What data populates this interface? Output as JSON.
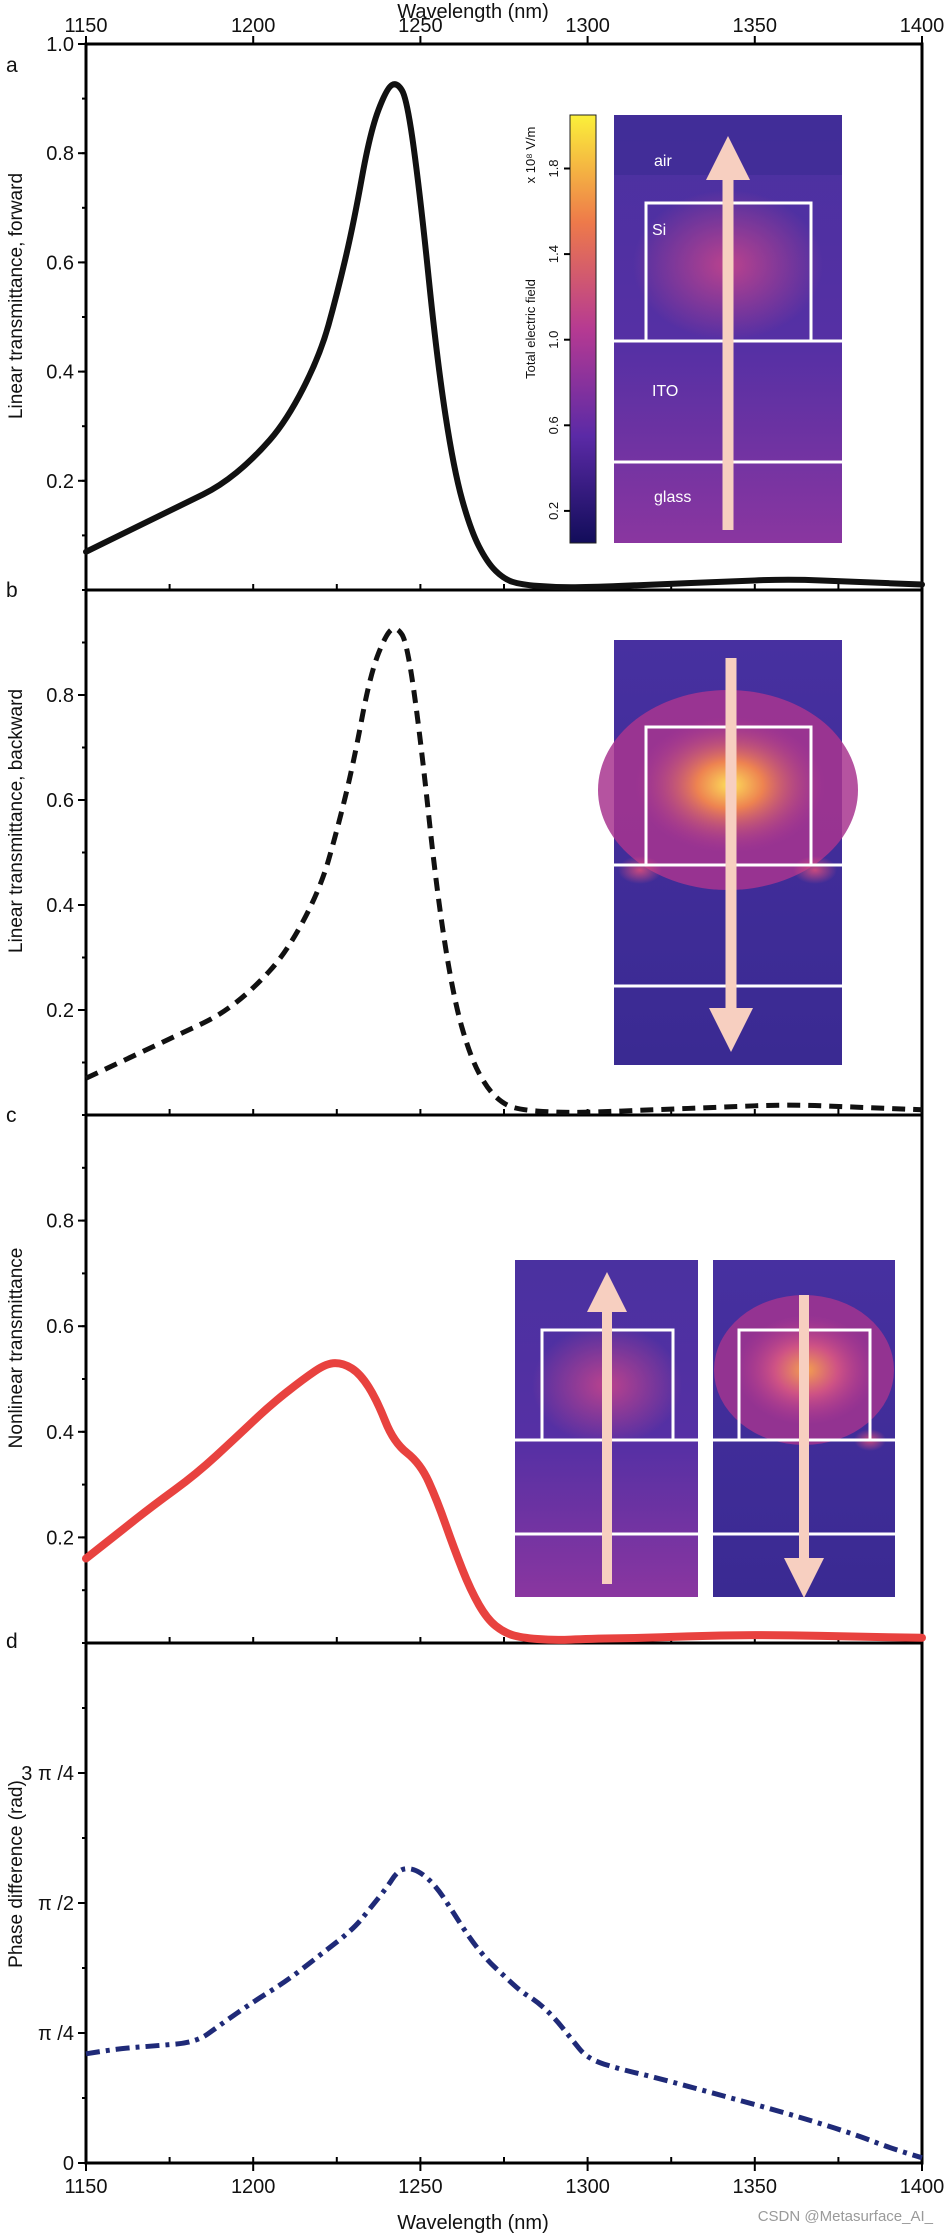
{
  "x_axis": {
    "label": "Wavelength (nm)",
    "ticks": [
      "1150",
      "1200",
      "1250",
      "1300",
      "1350",
      "1400"
    ],
    "xlim": [
      1150,
      1400
    ]
  },
  "panels": [
    {
      "letter": "a",
      "ylabel": "Linear transmittance, forward",
      "yticks": [
        "0.2",
        "0.4",
        "0.6",
        "0.8",
        "1.0"
      ]
    },
    {
      "letter": "b",
      "ylabel": "Linear transmittance, backward",
      "yticks": [
        "0.2",
        "0.4",
        "0.6",
        "0.8"
      ]
    },
    {
      "letter": "c",
      "ylabel": "Nonlinear transmittance",
      "yticks": [
        "0.2",
        "0.4",
        "0.6",
        "0.8"
      ]
    },
    {
      "letter": "d",
      "ylabel": "Phase difference (rad)",
      "yticks": [
        "0",
        "π /4",
        "π /2",
        "3 π /4"
      ]
    }
  ],
  "inset": {
    "colorbar_title": "Total electric field",
    "colorbar_unit": "x 10⁸ V/m",
    "colorbar_ticks": [
      "0.2",
      "0.6",
      "1.0",
      "1.4",
      "1.8"
    ],
    "layers": [
      "air",
      "Si",
      "ITO",
      "glass"
    ]
  },
  "colors": {
    "forward": "#111111",
    "backward": "#111111",
    "nonlinear": "#e8423f",
    "phase": "#1f2a78",
    "arrow": "#f7cfc0"
  },
  "watermark": "CSDN @Metasurface_AI_",
  "chart_data": [
    {
      "type": "line",
      "panel": "a",
      "ylabel": "Linear transmittance, forward",
      "xlabel": "Wavelength (nm)",
      "xlim": [
        1150,
        1400
      ],
      "ylim": [
        0,
        1.0
      ],
      "style": "solid",
      "x": [
        1150,
        1160,
        1170,
        1180,
        1190,
        1200,
        1210,
        1220,
        1225,
        1230,
        1235,
        1240,
        1243,
        1246,
        1250,
        1255,
        1260,
        1265,
        1270,
        1275,
        1280,
        1290,
        1300,
        1320,
        1340,
        1360,
        1380,
        1400
      ],
      "y": [
        0.07,
        0.1,
        0.13,
        0.16,
        0.19,
        0.24,
        0.31,
        0.43,
        0.54,
        0.67,
        0.84,
        0.92,
        0.93,
        0.9,
        0.72,
        0.42,
        0.22,
        0.11,
        0.05,
        0.02,
        0.01,
        0.005,
        0.005,
        0.01,
        0.015,
        0.02,
        0.015,
        0.01
      ]
    },
    {
      "type": "line",
      "panel": "b",
      "ylabel": "Linear transmittance, backward",
      "xlabel": "Wavelength (nm)",
      "xlim": [
        1150,
        1400
      ],
      "ylim": [
        0,
        1.0
      ],
      "style": "dashed",
      "x": [
        1150,
        1160,
        1170,
        1180,
        1190,
        1200,
        1210,
        1220,
        1225,
        1230,
        1235,
        1240,
        1243,
        1246,
        1250,
        1255,
        1260,
        1265,
        1270,
        1275,
        1280,
        1290,
        1300,
        1320,
        1340,
        1360,
        1380,
        1400
      ],
      "y": [
        0.07,
        0.1,
        0.13,
        0.16,
        0.19,
        0.24,
        0.31,
        0.43,
        0.54,
        0.67,
        0.84,
        0.92,
        0.93,
        0.9,
        0.72,
        0.42,
        0.22,
        0.11,
        0.05,
        0.02,
        0.01,
        0.005,
        0.005,
        0.01,
        0.015,
        0.02,
        0.015,
        0.01
      ]
    },
    {
      "type": "line",
      "panel": "c",
      "ylabel": "Nonlinear transmittance",
      "xlabel": "Wavelength (nm)",
      "xlim": [
        1150,
        1400
      ],
      "ylim": [
        0,
        1.0
      ],
      "style": "solid",
      "x": [
        1150,
        1160,
        1170,
        1183,
        1195,
        1205,
        1215,
        1222,
        1227,
        1232,
        1237,
        1242,
        1250,
        1255,
        1260,
        1265,
        1270,
        1275,
        1280,
        1290,
        1300,
        1320,
        1340,
        1360,
        1380,
        1400
      ],
      "y": [
        0.16,
        0.21,
        0.26,
        0.32,
        0.39,
        0.45,
        0.5,
        0.53,
        0.53,
        0.51,
        0.46,
        0.38,
        0.34,
        0.27,
        0.18,
        0.1,
        0.045,
        0.02,
        0.01,
        0.005,
        0.008,
        0.01,
        0.015,
        0.015,
        0.012,
        0.01
      ]
    },
    {
      "type": "line",
      "panel": "d",
      "ylabel": "Phase difference (rad)",
      "xlabel": "Wavelength (nm)",
      "xlim": [
        1150,
        1400
      ],
      "ylim_over_pi": [
        0,
        1.0
      ],
      "style": "dash-dot",
      "x": [
        1150,
        1160,
        1170,
        1183,
        1190,
        1200,
        1210,
        1220,
        1230,
        1235,
        1240,
        1243,
        1246,
        1250,
        1255,
        1260,
        1265,
        1270,
        1275,
        1280,
        1285,
        1290,
        1295,
        1300,
        1310,
        1320,
        1340,
        1360,
        1380,
        1390,
        1400
      ],
      "y_over_pi": [
        0.21,
        0.22,
        0.225,
        0.232,
        0.265,
        0.31,
        0.35,
        0.4,
        0.45,
        0.49,
        0.53,
        0.56,
        0.568,
        0.56,
        0.53,
        0.48,
        0.43,
        0.39,
        0.36,
        0.33,
        0.31,
        0.28,
        0.24,
        0.2,
        0.18,
        0.165,
        0.13,
        0.095,
        0.055,
        0.03,
        0.01
      ]
    }
  ]
}
